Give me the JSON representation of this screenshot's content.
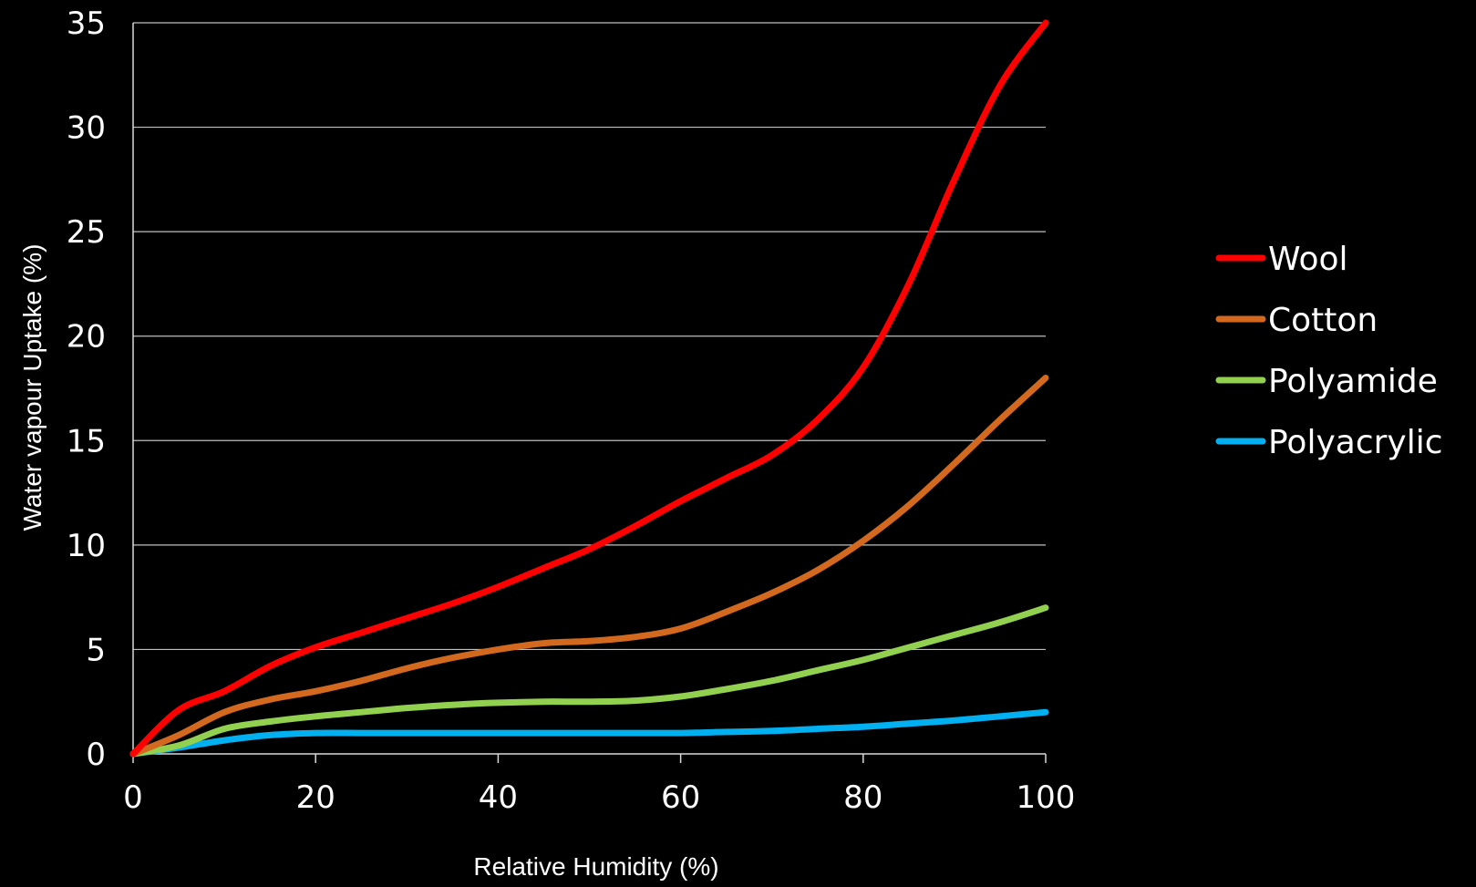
{
  "chart_data": {
    "type": "line",
    "title": "",
    "xlabel": "Relative Humidity (%)",
    "ylabel": "Water vapour Uptake (%)",
    "xlim": [
      0,
      100
    ],
    "ylim": [
      0,
      35
    ],
    "xticks": [
      0,
      20,
      40,
      60,
      80,
      100
    ],
    "yticks": [
      0,
      5,
      10,
      15,
      20,
      25,
      30,
      35
    ],
    "grid": "horizontal",
    "legend_position": "right",
    "background": "#000000",
    "series": [
      {
        "name": "Wool",
        "color": "#ff0000",
        "x": [
          0,
          5,
          10,
          15,
          20,
          25,
          30,
          35,
          40,
          45,
          50,
          55,
          60,
          65,
          70,
          75,
          80,
          85,
          90,
          95,
          100
        ],
        "y": [
          0,
          2.1,
          3.0,
          4.2,
          5.1,
          5.8,
          6.5,
          7.2,
          8.0,
          8.9,
          9.8,
          10.9,
          12.1,
          13.2,
          14.3,
          16.0,
          18.5,
          22.5,
          27.5,
          32.0,
          35.0
        ]
      },
      {
        "name": "Cotton",
        "color": "#d2691e",
        "x": [
          0,
          5,
          10,
          15,
          20,
          25,
          30,
          35,
          40,
          45,
          50,
          55,
          60,
          65,
          70,
          75,
          80,
          85,
          90,
          95,
          100
        ],
        "y": [
          0,
          0.9,
          2.0,
          2.6,
          3.0,
          3.5,
          4.1,
          4.6,
          5.0,
          5.3,
          5.4,
          5.6,
          6.0,
          6.8,
          7.7,
          8.8,
          10.2,
          11.9,
          13.9,
          16.0,
          18.0
        ]
      },
      {
        "name": "Polyamide",
        "color": "#92d050",
        "x": [
          0,
          5,
          10,
          15,
          20,
          25,
          30,
          35,
          40,
          45,
          50,
          55,
          60,
          65,
          70,
          75,
          80,
          85,
          90,
          95,
          100
        ],
        "y": [
          0,
          0.4,
          1.2,
          1.55,
          1.8,
          2.0,
          2.2,
          2.35,
          2.45,
          2.5,
          2.5,
          2.55,
          2.75,
          3.1,
          3.5,
          4.0,
          4.5,
          5.1,
          5.7,
          6.3,
          7.0
        ]
      },
      {
        "name": "Polyacrylic",
        "color": "#00b0f0",
        "x": [
          0,
          5,
          10,
          15,
          20,
          25,
          30,
          35,
          40,
          45,
          50,
          55,
          60,
          65,
          70,
          75,
          80,
          85,
          90,
          95,
          100
        ],
        "y": [
          0,
          0.3,
          0.65,
          0.9,
          1.0,
          1.0,
          1.0,
          1.0,
          1.0,
          1.0,
          1.0,
          1.0,
          1.0,
          1.05,
          1.1,
          1.2,
          1.3,
          1.45,
          1.6,
          1.8,
          2.0
        ]
      }
    ]
  }
}
